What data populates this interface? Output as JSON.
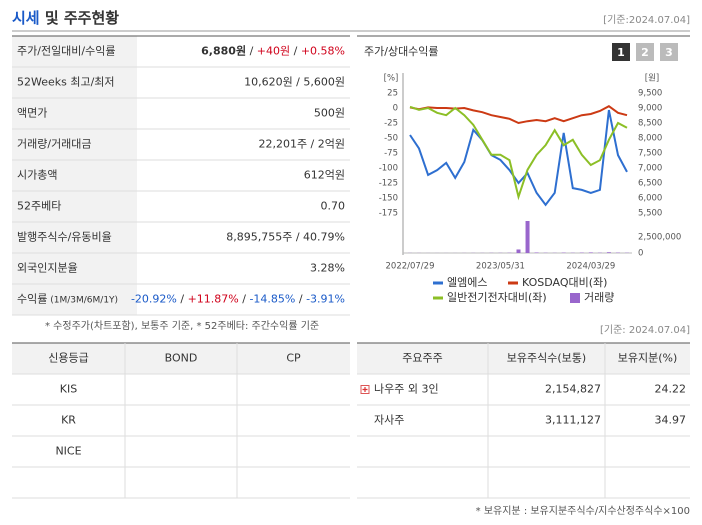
{
  "header": {
    "title_highlight": "시세",
    "title_rest": " 및 주주현황",
    "date": "[기준:2024.07.04]"
  },
  "price_table": {
    "rows": [
      {
        "label": "주가/전일대비/수익률",
        "value": [
          "6,880원",
          " / ",
          "+40원",
          " / ",
          "+0.58%"
        ]
      },
      {
        "label": "52Weeks 최고/최저",
        "value": [
          "10,620원 / 5,600원"
        ]
      },
      {
        "label": "액면가",
        "value": [
          "500원"
        ]
      },
      {
        "label": "거래량/거래대금",
        "value": [
          "22,201주 / 2억원"
        ]
      },
      {
        "label": "시가총액",
        "value": [
          "612억원"
        ]
      },
      {
        "label": "52주베타",
        "value": [
          "0.70"
        ]
      },
      {
        "label": "발행주식수/유동비율",
        "value": [
          "8,895,755주 / 40.79%"
        ]
      },
      {
        "label": "외국인지분율",
        "value": [
          "3.28%"
        ]
      },
      {
        "label": "수익률",
        "sub": " (1M/3M/6M/1Y)",
        "value": [
          "-20.92%",
          " / ",
          "+11.87%",
          " / ",
          "-14.85%",
          " / ",
          "-3.91%"
        ]
      }
    ]
  },
  "price_note": "* 수정주가(차트포함), 보통주 기준, * 52주베타: 주간수익률 기준",
  "chart_data": {
    "type": "line",
    "title": "주가/상대수익률",
    "buttons": [
      "1",
      "2",
      "3"
    ],
    "y_unit": "[%]",
    "y2_unit": "[원]",
    "categories": [
      "2022/07/29",
      null,
      null,
      null,
      null,
      null,
      null,
      null,
      null,
      null,
      "2023/05/31",
      null,
      null,
      null,
      null,
      null,
      null,
      null,
      null,
      null,
      "2024/03/29",
      null,
      null,
      null,
      null
    ],
    "ylim": [
      -175,
      25
    ],
    "yticks": [
      25,
      0,
      -25,
      -50,
      -75,
      -100,
      -125,
      -150,
      -175
    ],
    "y2lim": [
      5500,
      9500
    ],
    "y2ticks": [
      {
        "value": 9500,
        "label": "9,500"
      },
      {
        "value": 9000,
        "label": "9,000"
      },
      {
        "value": 8500,
        "label": "8,500"
      },
      {
        "value": 8000,
        "label": "8,000"
      },
      {
        "value": 7500,
        "label": "7,500"
      },
      {
        "value": 7000,
        "label": "7,000"
      },
      {
        "value": 6500,
        "label": "6,500"
      },
      {
        "value": 6000,
        "label": "6,000"
      },
      {
        "value": 5500,
        "label": "5,500"
      }
    ],
    "vlim": [
      0,
      5000000
    ],
    "vticks": [
      {
        "value": 2500000,
        "label": "2,500,000"
      },
      0
    ],
    "series": [
      {
        "name": "엘엠에스",
        "color": "#2e6fd0",
        "axis": "y2",
        "values": [
          8100,
          7650,
          6770,
          6930,
          7170,
          6670,
          7200,
          8270,
          7930,
          7430,
          7270,
          6930,
          6500,
          6830,
          6170,
          5770,
          6170,
          8170,
          6330,
          6270,
          6170,
          6270,
          8930,
          7430,
          6870
        ]
      },
      {
        "name": "KOSDAQ대비(좌)",
        "color": "#cc3a14",
        "axis": "y",
        "values": [
          1,
          -2,
          1,
          0,
          0,
          -1,
          0,
          -4,
          -7,
          -12,
          -15,
          -18,
          -25,
          -22,
          -20,
          -22,
          -17,
          -22,
          -17,
          -12,
          -10,
          -5,
          3,
          -8,
          -12
        ]
      },
      {
        "name": "일반전기전자대비(좌)",
        "color": "#8cbf26",
        "axis": "y",
        "values": [
          2,
          -3,
          0,
          -8,
          -12,
          0,
          -12,
          -28,
          -53,
          -78,
          -78,
          -87,
          -148,
          -103,
          -78,
          -62,
          -37,
          -62,
          -53,
          -78,
          -95,
          -87,
          -53,
          -25,
          -33
        ]
      },
      {
        "name": "거래량",
        "color": "#9966cc",
        "axis": "volume",
        "type": "bar",
        "values": [
          20000,
          15000,
          10000,
          10000,
          10000,
          10000,
          15000,
          20000,
          20000,
          30000,
          30000,
          40000,
          550000,
          5000000,
          80000,
          40000,
          30000,
          60000,
          40000,
          60000,
          90000,
          50000,
          120000,
          60000,
          40000
        ]
      }
    ]
  },
  "holder_date": "[기준: 2024.07.04]",
  "credit_table": {
    "headers": [
      "신용등급",
      "BOND",
      "CP"
    ],
    "rows": [
      [
        "KIS"
      ],
      [
        "KR"
      ],
      [
        "NICE"
      ]
    ]
  },
  "holder_table": {
    "headers": [
      "주요주주",
      "보유주식수(보통)",
      "보유지분(%)"
    ],
    "rows": [
      [
        "나우주 외 3인",
        "2,154,827",
        "24.22"
      ],
      [
        "자사주",
        "3,111,127",
        "34.97"
      ]
    ]
  },
  "holder_note": "* 보유지분 : 보유지분주식수/지수산정주식수×100"
}
